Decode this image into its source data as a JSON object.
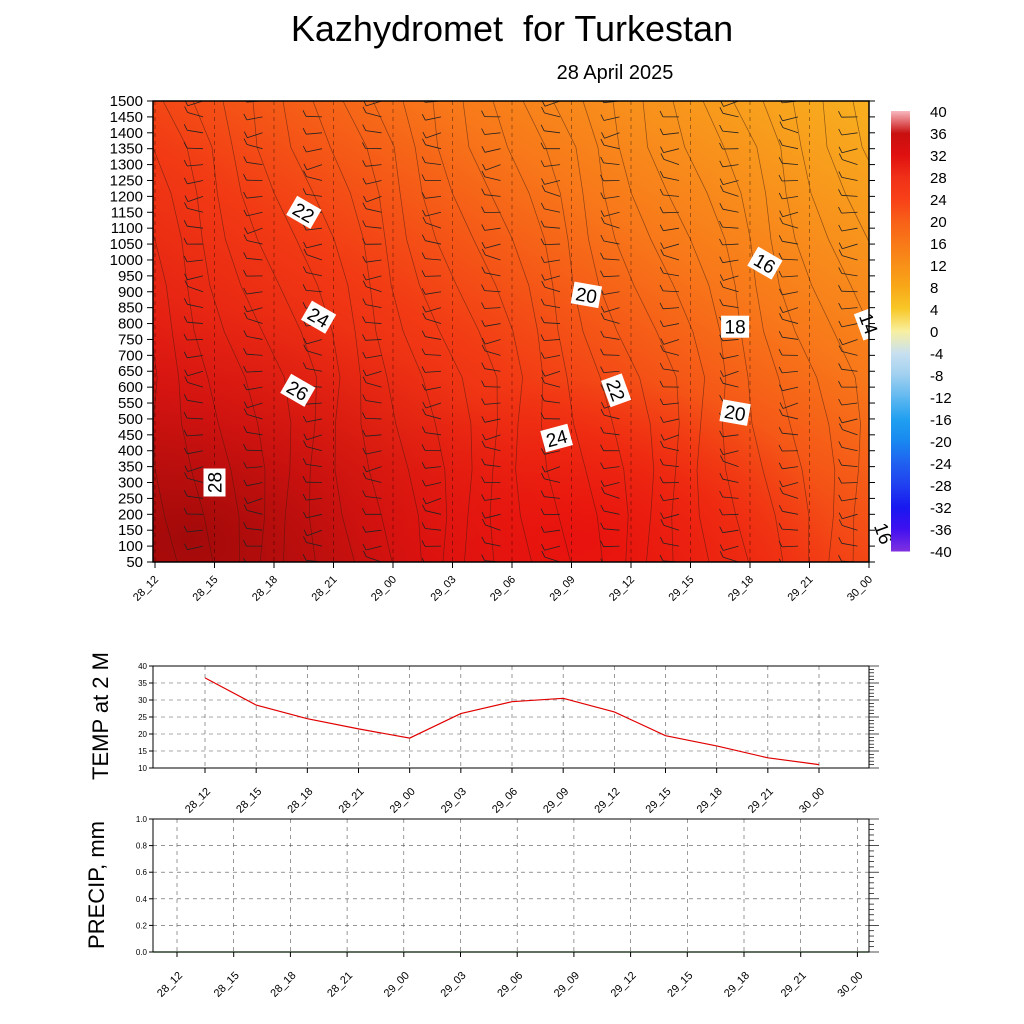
{
  "header": {
    "title": "Kazhydromet  for Turkestan",
    "date": "28 April 2025"
  },
  "chart_data": [
    {
      "type": "heatmap",
      "ylim": [
        50,
        1500
      ],
      "y_ticks": [
        "50",
        "100",
        "150",
        "200",
        "250",
        "300",
        "350",
        "400",
        "450",
        "500",
        "550",
        "600",
        "650",
        "700",
        "750",
        "800",
        "850",
        "900",
        "950",
        "1000",
        "1050",
        "1100",
        "1150",
        "1200",
        "1250",
        "1300",
        "1350",
        "1400",
        "1450",
        "1500"
      ],
      "x_ticks": [
        "28_12",
        "28_15",
        "28_18",
        "28_21",
        "29_00",
        "29_03",
        "29_06",
        "29_09",
        "29_12",
        "29_15",
        "29_18",
        "29_21",
        "30_00"
      ],
      "colorbar": {
        "labels": [
          "40",
          "36",
          "32",
          "28",
          "24",
          "20",
          "16",
          "12",
          "8",
          "4",
          "0",
          "-4",
          "-8",
          "-12",
          "-16",
          "-20",
          "-24",
          "-28",
          "-32",
          "-36",
          "-40"
        ],
        "colors": [
          "#f8b8c0",
          "#c81010",
          "#e01010",
          "#f03018",
          "#f84018",
          "#f86018",
          "#f87818",
          "#f89018",
          "#f8a818",
          "#f8c828",
          "#f8f0a0",
          "#c8e0f0",
          "#a0d0f0",
          "#60b8f0",
          "#20a0f0",
          "#1888f0",
          "#2060f0",
          "#2040f0",
          "#1818f0",
          "#4010f0",
          "#8030e0"
        ]
      },
      "contour_labels": [
        {
          "text": "22",
          "x": 29.0,
          "y": 1150,
          "angle": 30
        },
        {
          "text": "24",
          "x": 29.5,
          "y": 820,
          "angle": 30
        },
        {
          "text": "26",
          "x": 28.8,
          "y": 590,
          "angle": 30
        },
        {
          "text": "28",
          "x": 26.0,
          "y": 300,
          "angle": -90
        },
        {
          "text": "20",
          "x": 38.5,
          "y": 890,
          "angle": 10
        },
        {
          "text": "22",
          "x": 39.5,
          "y": 590,
          "angle": 70
        },
        {
          "text": "24",
          "x": 37.5,
          "y": 440,
          "angle": -15
        },
        {
          "text": "16",
          "x": 44.5,
          "y": 990,
          "angle": 30
        },
        {
          "text": "18",
          "x": 43.5,
          "y": 790,
          "angle": 0
        },
        {
          "text": "20",
          "x": 43.5,
          "y": 520,
          "angle": 10
        },
        {
          "text": "14",
          "x": 48.0,
          "y": 800,
          "angle": 70
        },
        {
          "text": "16",
          "x": 48.5,
          "y": 140,
          "angle": 70
        }
      ]
    },
    {
      "type": "line",
      "ylabel": "TEMP at 2 M",
      "ylim": [
        10,
        40
      ],
      "y_ticks": [
        "10",
        "15",
        "20",
        "25",
        "30",
        "35",
        "40"
      ],
      "x": [
        "28_12",
        "28_15",
        "28_18",
        "28_21",
        "29_00",
        "29_03",
        "29_06",
        "29_09",
        "29_12",
        "29_15",
        "29_18",
        "29_21",
        "30_00"
      ],
      "values": [
        36.5,
        28.5,
        24.5,
        21.5,
        18.8,
        26.0,
        29.5,
        30.5,
        26.5,
        19.5,
        16.5,
        13.0,
        11.0
      ],
      "line_color": "#e00000",
      "grid": true
    },
    {
      "type": "line",
      "ylabel": "PRECIP, mm",
      "ylim": [
        0.0,
        1.0
      ],
      "y_ticks": [
        "0.0",
        "0.2",
        "0.4",
        "0.6",
        "0.8",
        "1.0"
      ],
      "x": [
        "28_12",
        "28_15",
        "28_18",
        "28_21",
        "29_00",
        "29_03",
        "29_06",
        "29_09",
        "29_12",
        "29_15",
        "29_18",
        "29_21",
        "30_00"
      ],
      "values": [
        0,
        0,
        0,
        0,
        0,
        0,
        0,
        0,
        0,
        0,
        0,
        0,
        0
      ],
      "line_color": "#008000",
      "grid": true
    }
  ]
}
